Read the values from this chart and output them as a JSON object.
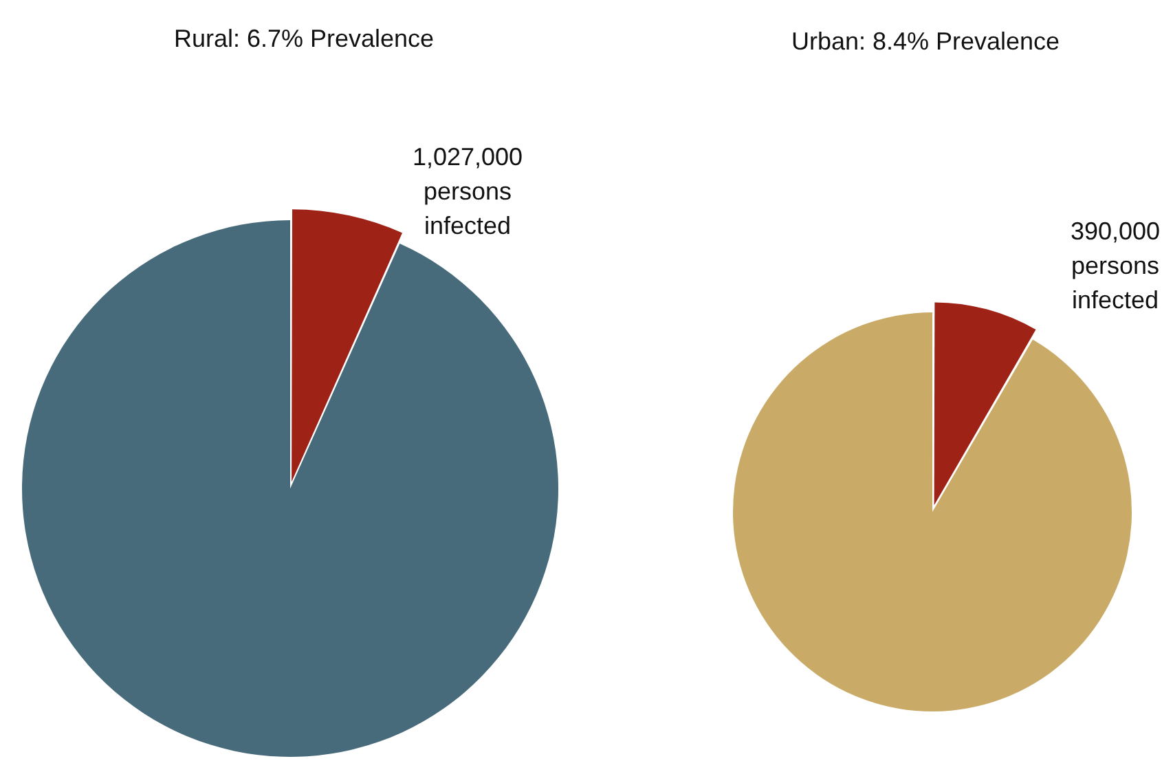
{
  "chart_data": [
    {
      "type": "pie",
      "title": "Rural: 6.7% Prevalence",
      "categories": [
        null,
        null
      ],
      "values": [
        6.7,
        93.3
      ],
      "colors": [
        "#9e2216",
        "#486b7b"
      ],
      "annotations": [
        "1,027,000 persons infected"
      ]
    },
    {
      "type": "pie",
      "title": "Urban: 8.4% Prevalence",
      "categories": [
        null,
        null
      ],
      "values": [
        8.4,
        91.6
      ],
      "colors": [
        "#9e2216",
        "#c9ab67"
      ],
      "annotations": [
        "390,000 persons infected"
      ]
    }
  ]
}
